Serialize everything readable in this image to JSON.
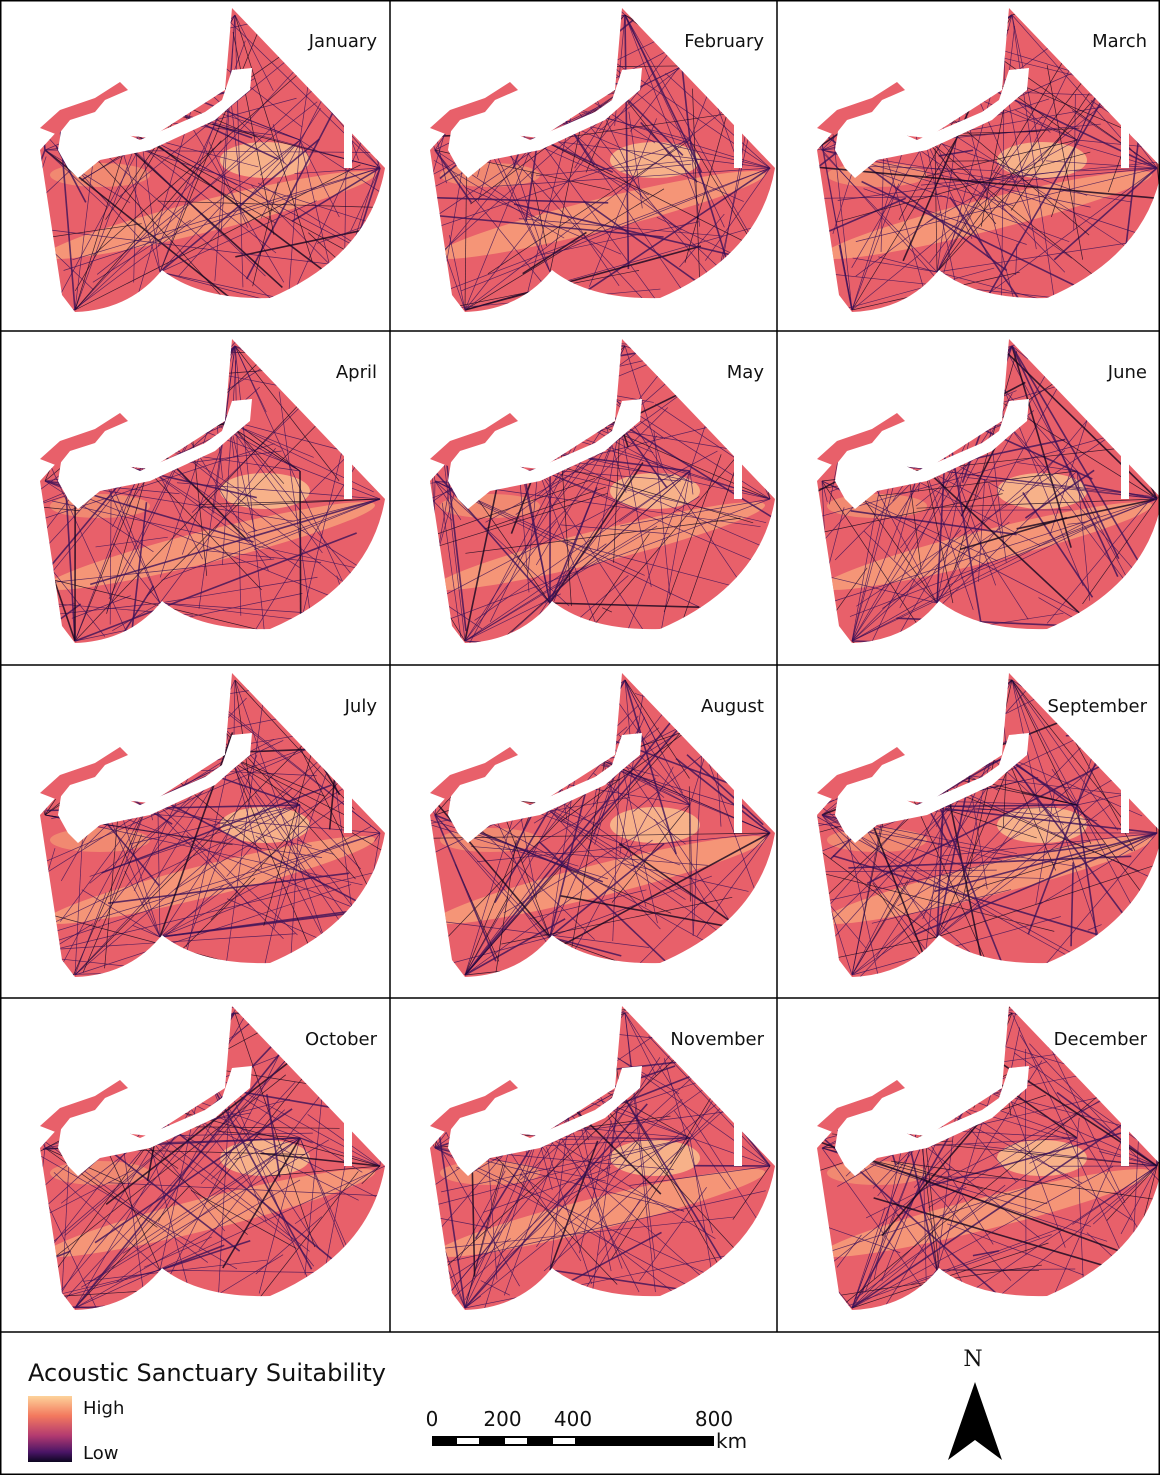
{
  "panels": [
    {
      "label": "January"
    },
    {
      "label": "February"
    },
    {
      "label": "March"
    },
    {
      "label": "April"
    },
    {
      "label": "May"
    },
    {
      "label": "June"
    },
    {
      "label": "July"
    },
    {
      "label": "August"
    },
    {
      "label": "September"
    },
    {
      "label": "October"
    },
    {
      "label": "November"
    },
    {
      "label": "December"
    }
  ],
  "legend": {
    "title": "Acoustic Sanctuary Suitability",
    "high": "High",
    "low": "Low"
  },
  "scale_bar": {
    "ticks": [
      0,
      200,
      400,
      800
    ],
    "unit": "km"
  },
  "north_arrow": "N"
}
